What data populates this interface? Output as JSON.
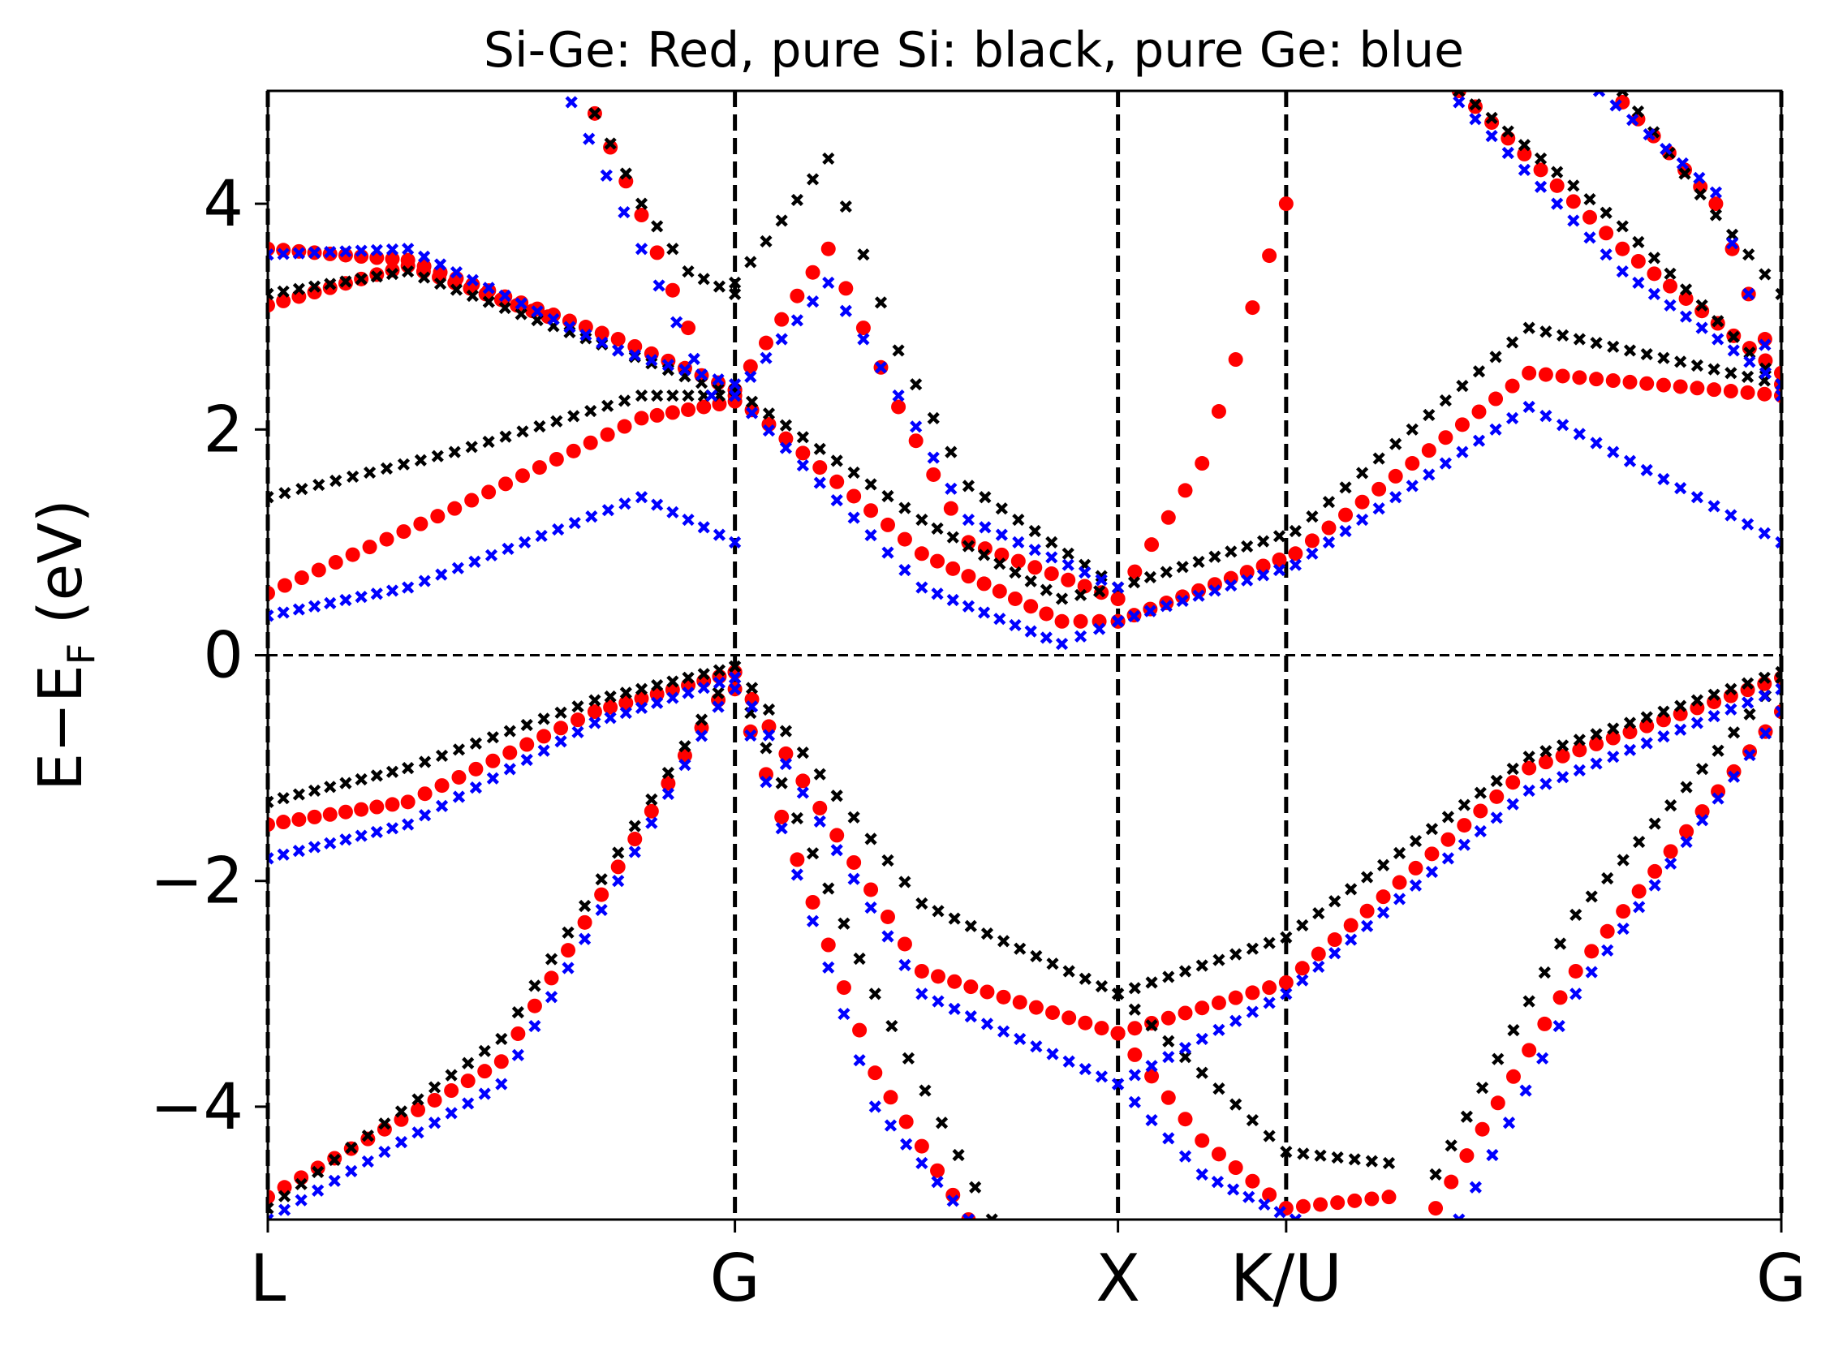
{
  "chart_data": {
    "type": "scatter",
    "title": "Si-Ge: Red, pure Si: black, pure Ge: blue",
    "ylabel_main": "E−E",
    "ylabel_sub": "F",
    "ylabel_unit": " (eV)",
    "ylim": [
      -5,
      5
    ],
    "yticks": [
      -4,
      -2,
      0,
      2,
      4
    ],
    "ytick_labels": [
      "−4",
      "−2",
      "0",
      "2",
      "4"
    ],
    "xlim": [
      0,
      3.24
    ],
    "kpoints": [
      {
        "label": "L",
        "x": 0
      },
      {
        "label": "G",
        "x": 1.0
      },
      {
        "label": "X",
        "x": 1.82
      },
      {
        "label": "K/U",
        "x": 2.18
      },
      {
        "label": "G",
        "x": 3.24
      }
    ],
    "fermi_level": 0,
    "grid": false,
    "legend": "none",
    "series": [
      {
        "color": "#ff0000",
        "marker": "circle",
        "bands": [
          {
            "x": [
              0,
              0.5,
              1.0
            ],
            "y": [
              -4.8,
              -3.6,
              -0.15
            ]
          },
          {
            "x": [
              0,
              0.3,
              0.7,
              1.0
            ],
            "y": [
              -1.5,
              -1.3,
              -0.5,
              -0.15
            ]
          },
          {
            "x": [
              0,
              0.4,
              0.8,
              1.0
            ],
            "y": [
              0.55,
              1.3,
              2.1,
              2.25
            ]
          },
          {
            "x": [
              0,
              0.3,
              0.75,
              1.0
            ],
            "y": [
              3.6,
              3.5,
              2.8,
              2.35
            ]
          },
          {
            "x": [
              0,
              0.3,
              0.6
            ],
            "y": [
              3.1,
              3.45,
              3.0
            ]
          },
          {
            "x": [
              0.7,
              0.8,
              0.9
            ],
            "y": [
              4.8,
              3.9,
              2.9
            ]
          },
          {
            "x": [
              1.0,
              1.4,
              1.82
            ],
            "y": [
              -0.15,
              -2.8,
              -3.35
            ]
          },
          {
            "x": [
              1.0,
              1.3,
              1.5
            ],
            "y": [
              -0.3,
              -3.7,
              -5.0
            ]
          },
          {
            "x": [
              1.0,
              1.4,
              1.7,
              1.82
            ],
            "y": [
              2.3,
              0.9,
              0.3,
              0.3
            ]
          },
          {
            "x": [
              1.0,
              1.2,
              1.35,
              1.5,
              1.82
            ],
            "y": [
              2.35,
              3.6,
              2.2,
              1.0,
              0.5
            ]
          },
          {
            "x": [
              1.82,
              2.0,
              2.18
            ],
            "y": [
              0.5,
              1.7,
              4.0
            ]
          },
          {
            "x": [
              1.82,
              2.18,
              2.7,
              3.24
            ],
            "y": [
              -3.35,
              -2.9,
              -1.0,
              -0.2
            ]
          },
          {
            "x": [
              1.82,
              2.0,
              2.18,
              2.4
            ],
            "y": [
              -3.35,
              -4.3,
              -4.9,
              -4.8
            ]
          },
          {
            "x": [
              1.82,
              2.2,
              2.7,
              3.24
            ],
            "y": [
              0.3,
              0.9,
              2.5,
              2.3
            ]
          },
          {
            "x": [
              2.5,
              2.8,
              3.24
            ],
            "y": [
              -4.9,
              -2.8,
              -0.5
            ]
          },
          {
            "x": [
              2.55,
              2.9,
              3.24
            ],
            "y": [
              5.0,
              3.6,
              2.5
            ]
          },
          {
            "x": [
              2.9,
              3.1,
              3.24
            ],
            "y": [
              4.9,
              4.0,
              2.4
            ]
          }
        ]
      },
      {
        "color": "#000000",
        "marker": "x",
        "bands": [
          {
            "x": [
              0,
              0.5,
              1.0
            ],
            "y": [
              -4.9,
              -3.4,
              -0.1
            ]
          },
          {
            "x": [
              0,
              0.3,
              0.7,
              1.0
            ],
            "y": [
              -1.3,
              -1.0,
              -0.4,
              -0.1
            ]
          },
          {
            "x": [
              0,
              0.4,
              0.8,
              1.0
            ],
            "y": [
              1.4,
              1.8,
              2.3,
              2.3
            ]
          },
          {
            "x": [
              0,
              0.3,
              0.75,
              1.0
            ],
            "y": [
              3.2,
              3.4,
              2.7,
              2.3
            ]
          },
          {
            "x": [
              0.7,
              0.8,
              0.9,
              1.0
            ],
            "y": [
              4.8,
              4.0,
              3.4,
              3.2
            ]
          },
          {
            "x": [
              1.0,
              1.4,
              1.82
            ],
            "y": [
              -0.1,
              -2.2,
              -3.0
            ]
          },
          {
            "x": [
              1.0,
              1.3,
              1.55
            ],
            "y": [
              -0.2,
              -3.0,
              -5.0
            ]
          },
          {
            "x": [
              1.0,
              1.4,
              1.7,
              1.82
            ],
            "y": [
              2.35,
              1.2,
              0.5,
              0.6
            ]
          },
          {
            "x": [
              1.0,
              1.2,
              1.35,
              1.5,
              1.82
            ],
            "y": [
              3.3,
              4.4,
              2.7,
              1.5,
              0.6
            ]
          },
          {
            "x": [
              1.82,
              2.18,
              2.7,
              3.24
            ],
            "y": [
              -3.0,
              -2.5,
              -0.9,
              -0.15
            ]
          },
          {
            "x": [
              1.82,
              2.18,
              2.4
            ],
            "y": [
              -3.0,
              -4.4,
              -4.5
            ]
          },
          {
            "x": [
              1.82,
              2.2,
              2.7,
              3.24
            ],
            "y": [
              0.6,
              1.1,
              2.9,
              2.4
            ]
          },
          {
            "x": [
              2.5,
              2.8,
              3.24
            ],
            "y": [
              -4.6,
              -2.3,
              -0.2
            ]
          },
          {
            "x": [
              2.55,
              2.9,
              3.24
            ],
            "y": [
              5.0,
              3.8,
              2.4
            ]
          },
          {
            "x": [
              2.9,
              3.1,
              3.24
            ],
            "y": [
              5.0,
              3.9,
              3.2
            ]
          }
        ]
      },
      {
        "color": "#0000ff",
        "marker": "x",
        "bands": [
          {
            "x": [
              0,
              0.5,
              1.0
            ],
            "y": [
              -5.0,
              -3.8,
              -0.2
            ]
          },
          {
            "x": [
              0,
              0.3,
              0.7,
              1.0
            ],
            "y": [
              -1.8,
              -1.5,
              -0.6,
              -0.2
            ]
          },
          {
            "x": [
              0,
              0.3,
              0.8,
              1.0
            ],
            "y": [
              0.35,
              0.6,
              1.4,
              1.0
            ]
          },
          {
            "x": [
              0,
              0.3,
              0.75,
              1.0
            ],
            "y": [
              3.55,
              3.6,
              2.7,
              2.4
            ]
          },
          {
            "x": [
              0.65,
              0.8,
              0.95
            ],
            "y": [
              4.9,
              3.6,
              2.3
            ]
          },
          {
            "x": [
              1.0,
              1.4,
              1.82
            ],
            "y": [
              -0.2,
              -3.0,
              -3.8
            ]
          },
          {
            "x": [
              1.0,
              1.3,
              1.5
            ],
            "y": [
              -0.3,
              -4.0,
              -5.0
            ]
          },
          {
            "x": [
              1.0,
              1.4,
              1.7,
              1.82
            ],
            "y": [
              2.3,
              0.6,
              0.1,
              0.3
            ]
          },
          {
            "x": [
              1.0,
              1.2,
              1.35,
              1.5,
              1.82
            ],
            "y": [
              2.3,
              3.3,
              2.3,
              1.2,
              0.6
            ]
          },
          {
            "x": [
              1.82,
              2.18,
              2.7,
              3.24
            ],
            "y": [
              -3.8,
              -3.0,
              -1.2,
              -0.3
            ]
          },
          {
            "x": [
              1.82,
              2.0,
              2.2
            ],
            "y": [
              -3.8,
              -4.6,
              -5.0
            ]
          },
          {
            "x": [
              1.82,
              2.2,
              2.7,
              3.24
            ],
            "y": [
              0.3,
              0.8,
              2.2,
              1.0
            ]
          },
          {
            "x": [
              2.55,
              2.8,
              3.24
            ],
            "y": [
              -5.0,
              -3.0,
              -0.5
            ]
          },
          {
            "x": [
              2.55,
              2.9,
              3.24
            ],
            "y": [
              4.9,
              3.4,
              2.4
            ]
          },
          {
            "x": [
              2.85,
              3.1,
              3.24
            ],
            "y": [
              5.0,
              4.1,
              2.3
            ]
          }
        ]
      }
    ]
  }
}
